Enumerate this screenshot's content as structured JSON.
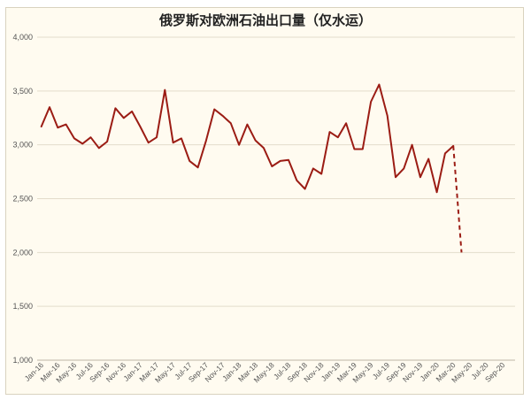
{
  "chart_data": {
    "type": "line",
    "title": "俄罗斯对欧洲石油出口量（仅水运）",
    "xlabel": "",
    "ylabel": "",
    "ylim": [
      1000,
      4000
    ],
    "yticks": [
      1000,
      1500,
      2000,
      2500,
      3000,
      3500,
      4000
    ],
    "ytick_labels": [
      "1,000",
      "1,500",
      "2,000",
      "2,500",
      "3,000",
      "3,500",
      "4,000"
    ],
    "grid": true,
    "x": [
      "Jan-16",
      "Feb-16",
      "Mar-16",
      "Apr-16",
      "May-16",
      "Jun-16",
      "Jul-16",
      "Aug-16",
      "Sep-16",
      "Oct-16",
      "Nov-16",
      "Dec-16",
      "Jan-17",
      "Feb-17",
      "Mar-17",
      "Apr-17",
      "May-17",
      "Jun-17",
      "Jul-17",
      "Aug-17",
      "Sep-17",
      "Oct-17",
      "Nov-17",
      "Dec-17",
      "Jan-18",
      "Feb-18",
      "Mar-18",
      "Apr-18",
      "May-18",
      "Jun-18",
      "Jul-18",
      "Aug-18",
      "Sep-18",
      "Oct-18",
      "Nov-18",
      "Dec-18",
      "Jan-19",
      "Feb-19",
      "Mar-19",
      "Apr-19",
      "May-19",
      "Jun-19",
      "Jul-19",
      "Aug-19",
      "Sep-19",
      "Oct-19",
      "Nov-19",
      "Dec-19",
      "Jan-20",
      "Feb-20",
      "Mar-20",
      "Apr-20",
      "May-20",
      "Jun-20",
      "Jul-20",
      "Aug-20",
      "Sep-20",
      "Oct-20"
    ],
    "xtick_labels": [
      "Jan-16",
      "Mar-16",
      "May-16",
      "Jul-16",
      "Sep-16",
      "Nov-16",
      "Jan-17",
      "Mar-17",
      "May-17",
      "Jul-17",
      "Sep-17",
      "Nov-17",
      "Jan-18",
      "Mar-18",
      "May-18",
      "Jul-18",
      "Sep-18",
      "Nov-18",
      "Jan-19",
      "Mar-19",
      "May-19",
      "Jul-19",
      "Sep-19",
      "Nov-19",
      "Jan-20",
      "Mar-20",
      "May-20",
      "Jul-20",
      "Sep-20"
    ],
    "series": [
      {
        "style": "solid",
        "color": "#9b1c14",
        "values": [
          3170,
          3350,
          3160,
          3190,
          3060,
          3010,
          3070,
          2970,
          3030,
          3340,
          3250,
          3310,
          3170,
          3020,
          3070,
          3510,
          3020,
          3060,
          2850,
          2790,
          3040,
          3330,
          3270,
          3200,
          3000,
          3190,
          3040,
          2970,
          2800,
          2850,
          2860,
          2670,
          2590,
          2780,
          2730,
          3120,
          3070,
          3200,
          2960,
          2960,
          3400,
          3560,
          3270,
          2700,
          2780,
          3000,
          2700,
          2870,
          2560,
          2920,
          2990,
          null,
          null,
          null,
          null,
          null,
          null,
          null
        ]
      },
      {
        "style": "dashed",
        "color": "#9b1c14",
        "values": [
          null,
          null,
          null,
          null,
          null,
          null,
          null,
          null,
          null,
          null,
          null,
          null,
          null,
          null,
          null,
          null,
          null,
          null,
          null,
          null,
          null,
          null,
          null,
          null,
          null,
          null,
          null,
          null,
          null,
          null,
          null,
          null,
          null,
          null,
          null,
          null,
          null,
          null,
          null,
          null,
          null,
          null,
          null,
          null,
          null,
          null,
          null,
          null,
          null,
          null,
          2990,
          2000,
          null,
          null,
          null,
          null,
          null,
          null
        ]
      }
    ]
  }
}
